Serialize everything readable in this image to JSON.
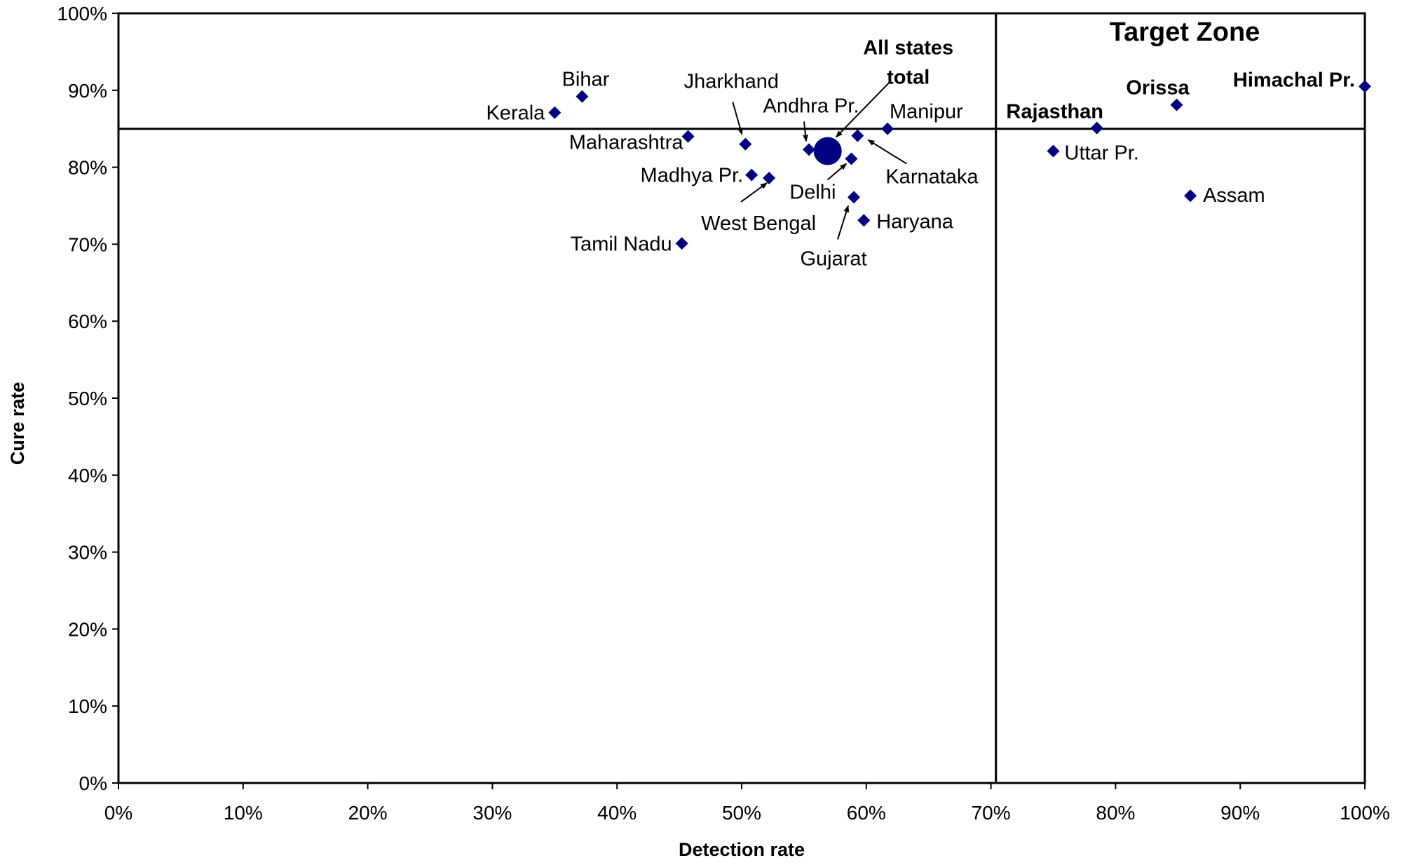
{
  "chart_data": {
    "type": "scatter",
    "title": "",
    "xlabel": "Detection rate",
    "ylabel": "Cure rate",
    "xlim": [
      0,
      100
    ],
    "ylim": [
      0,
      100
    ],
    "x_ticks": [
      {
        "value": 0,
        "label": "0%"
      },
      {
        "value": 10,
        "label": "10%"
      },
      {
        "value": 20,
        "label": "20%"
      },
      {
        "value": 30,
        "label": "30%"
      },
      {
        "value": 40,
        "label": "40%"
      },
      {
        "value": 50,
        "label": "50%"
      },
      {
        "value": 60,
        "label": "60%"
      },
      {
        "value": 70,
        "label": "70%"
      },
      {
        "value": 80,
        "label": "80%"
      },
      {
        "value": 90,
        "label": "90%"
      },
      {
        "value": 100,
        "label": "100%"
      }
    ],
    "y_ticks": [
      {
        "value": 0,
        "label": "0%"
      },
      {
        "value": 10,
        "label": "10%"
      },
      {
        "value": 20,
        "label": "20%"
      },
      {
        "value": 30,
        "label": "30%"
      },
      {
        "value": 40,
        "label": "40%"
      },
      {
        "value": 50,
        "label": "50%"
      },
      {
        "value": 60,
        "label": "60%"
      },
      {
        "value": 70,
        "label": "70%"
      },
      {
        "value": 80,
        "label": "80%"
      },
      {
        "value": 90,
        "label": "90%"
      },
      {
        "value": 100,
        "label": "100%"
      }
    ],
    "grid": false,
    "legend": "none",
    "marker_color": "#000080",
    "reference_lines": {
      "cure_rate_target": 85,
      "detection_rate_target": 70.4
    },
    "zone_label": "Target Zone",
    "points": [
      {
        "label": "Bihar",
        "x": 37.2,
        "y": 89.2
      },
      {
        "label": "Kerala",
        "x": 35.0,
        "y": 87.1
      },
      {
        "label": "Jharkhand",
        "x": 50.3,
        "y": 83.0
      },
      {
        "label": "Maharashtra",
        "x": 45.7,
        "y": 84.0
      },
      {
        "label": "Madhya Pr.",
        "x": 50.8,
        "y": 79.0
      },
      {
        "label": "West Bengal",
        "x": 52.2,
        "y": 78.6
      },
      {
        "label": "Tamil Nadu",
        "x": 45.2,
        "y": 70.1
      },
      {
        "label": "Andhra Pr.",
        "x": 55.4,
        "y": 82.3
      },
      {
        "label": "Delhi",
        "x": 58.8,
        "y": 81.1
      },
      {
        "label": "Karnataka",
        "x": 59.3,
        "y": 84.1
      },
      {
        "label": "Manipur",
        "x": 61.7,
        "y": 85.0
      },
      {
        "label": "Gujarat",
        "x": 59.0,
        "y": 76.1
      },
      {
        "label": "Haryana",
        "x": 59.8,
        "y": 73.1
      },
      {
        "label": "Rajasthan",
        "x": 78.5,
        "y": 85.1
      },
      {
        "label": "Uttar Pr.",
        "x": 75.0,
        "y": 82.1
      },
      {
        "label": "Orissa",
        "x": 84.9,
        "y": 88.1
      },
      {
        "label": "Assam",
        "x": 86.0,
        "y": 76.3
      },
      {
        "label": "Himachal Pr.",
        "x": 100.0,
        "y": 90.5
      }
    ],
    "total": {
      "label": "All states total",
      "label_lines": [
        "All states",
        "total"
      ],
      "x": 56.9,
      "y": 82.1
    }
  }
}
